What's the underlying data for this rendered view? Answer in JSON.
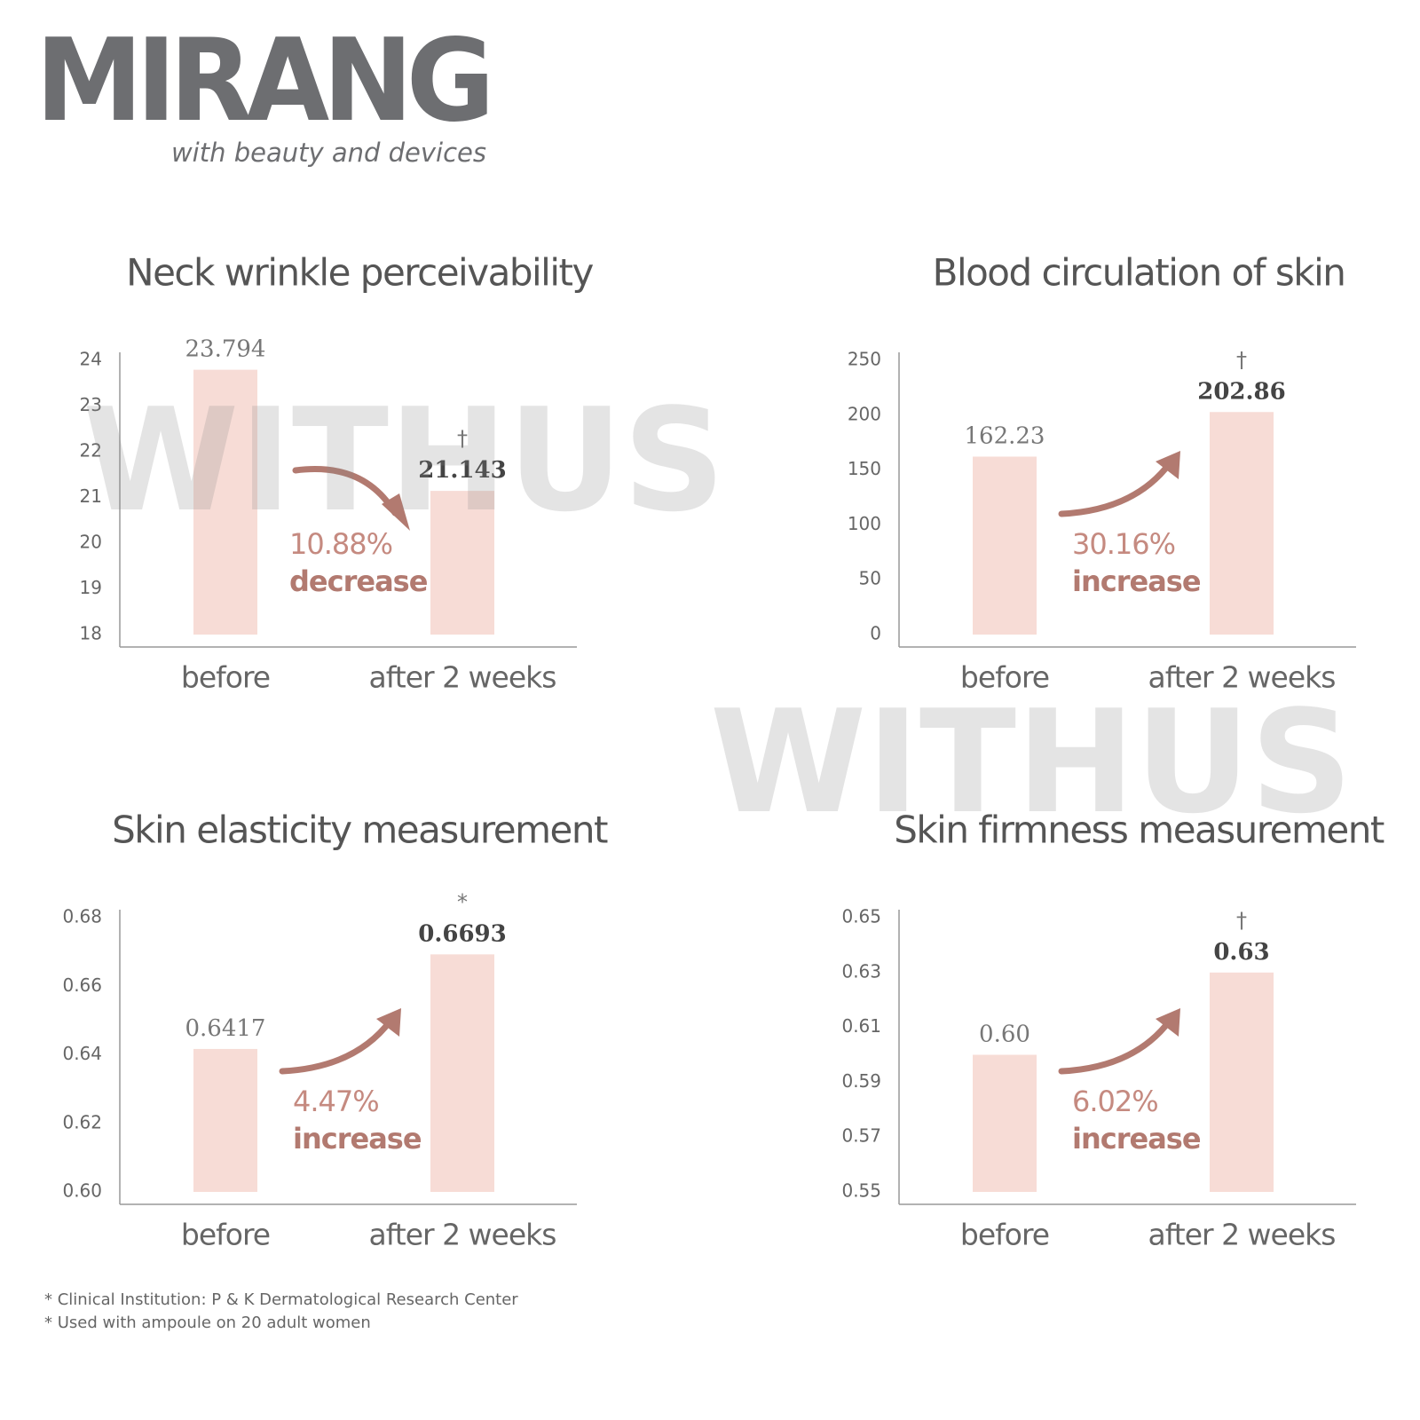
{
  "logo": {
    "name": "MIRANG",
    "tagline": "with beauty and devices"
  },
  "watermarks": [
    "WITHUS",
    "WITHUS"
  ],
  "chart_data": [
    {
      "type": "bar",
      "title": "Neck wrinkle perceivability",
      "categories": [
        "before",
        "after 2 weeks"
      ],
      "values": [
        23.794,
        21.143
      ],
      "color": "#f7dcd6",
      "ylim": [
        18,
        24
      ],
      "yticks": [
        18,
        19,
        20,
        21,
        22,
        23,
        24
      ],
      "annotation": {
        "change": "10.88%",
        "direction": "decrease",
        "marker": "†"
      }
    },
    {
      "type": "bar",
      "title": "Blood circulation of skin",
      "categories": [
        "before",
        "after 2 weeks"
      ],
      "values": [
        162.23,
        202.86
      ],
      "color": "#f7dcd6",
      "ylim": [
        0,
        250
      ],
      "yticks": [
        0,
        50,
        100,
        150,
        200,
        250
      ],
      "annotation": {
        "change": "30.16%",
        "direction": "increase",
        "marker": "†"
      }
    },
    {
      "type": "bar",
      "title": "Skin elasticity measurement",
      "categories": [
        "before",
        "after 2 weeks"
      ],
      "values": [
        0.6417,
        0.6693
      ],
      "color": "#f7dcd6",
      "ylim": [
        0.6,
        0.68
      ],
      "yticks": [
        {
          "value": 0.6,
          "label": "0.60"
        },
        0.62,
        0.64,
        0.66,
        0.68
      ],
      "annotation": {
        "change": "4.47%",
        "direction": "increase",
        "marker": "*"
      }
    },
    {
      "type": "bar",
      "title": "Skin firmness measurement",
      "categories": [
        "before",
        "after 2 weeks"
      ],
      "values": [
        0.6,
        0.63
      ],
      "value_labels": [
        "0.60",
        "0.63"
      ],
      "color": "#f7dcd6",
      "ylim": [
        0.55,
        0.65
      ],
      "yticks": [
        0.55,
        0.57,
        0.59,
        0.61,
        0.63,
        0.65
      ],
      "annotation": {
        "change": "6.02%",
        "direction": "increase",
        "marker": "†"
      }
    }
  ],
  "footnotes": [
    "* Clinical Institution: P & K Dermatological Research Center",
    "* Used with ampoule on 20 adult women"
  ]
}
